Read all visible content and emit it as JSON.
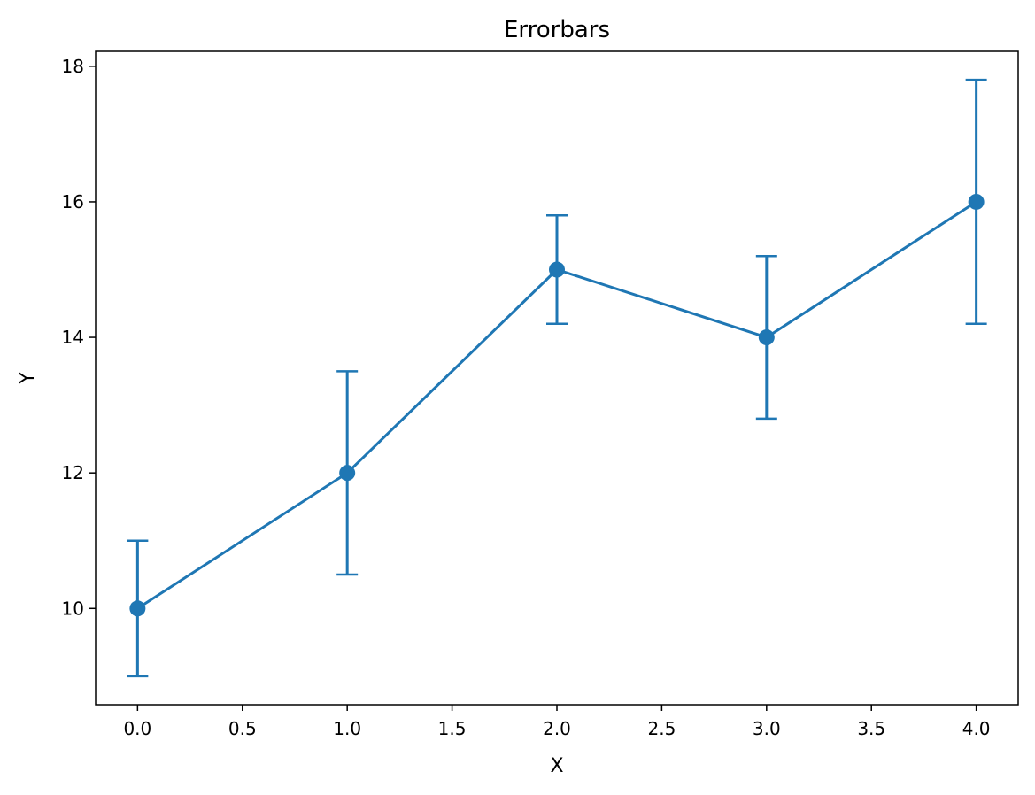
{
  "chart_data": {
    "type": "line",
    "title": "Errorbars",
    "xlabel": "X",
    "ylabel": "Y",
    "xlim": [
      -0.2,
      4.2
    ],
    "ylim": [
      8.58,
      18.22
    ],
    "x_ticks": [
      0.0,
      0.5,
      1.0,
      1.5,
      2.0,
      2.5,
      3.0,
      3.5,
      4.0
    ],
    "x_tick_labels": [
      "0.0",
      "0.5",
      "1.0",
      "1.5",
      "2.0",
      "2.5",
      "3.0",
      "3.5",
      "4.0"
    ],
    "y_ticks": [
      10,
      12,
      14,
      16,
      18
    ],
    "y_tick_labels": [
      "10",
      "12",
      "14",
      "16",
      "18"
    ],
    "grid": false,
    "series": [
      {
        "x": [
          0,
          1,
          2,
          3,
          4
        ],
        "y": [
          10,
          12,
          15,
          14,
          16
        ],
        "yerr": [
          1.0,
          1.5,
          0.8,
          1.2,
          1.8
        ],
        "color": "#1f77b4",
        "marker": "circle"
      }
    ]
  }
}
